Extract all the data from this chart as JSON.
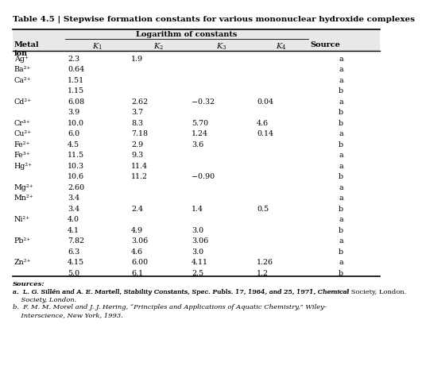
{
  "title": "Table 4.5 | Stepwise formation constants for various mononuclear hydroxide complexes",
  "col_header_top": "Logarithm of constants",
  "rows": [
    [
      "Ag⁺",
      "2.3",
      "1.9",
      "",
      "",
      "a"
    ],
    [
      "Ba²⁺",
      "0.64",
      "",
      "",
      "",
      "a"
    ],
    [
      "Ca²⁺",
      "1.51",
      "",
      "",
      "",
      "a"
    ],
    [
      "",
      "1.15",
      "",
      "",
      "",
      "b"
    ],
    [
      "Cd²⁺",
      "6.08",
      "2.62",
      "−0.32",
      "0.04",
      "a"
    ],
    [
      "",
      "3.9",
      "3.7",
      "",
      "",
      "b"
    ],
    [
      "Cr³⁺",
      "10.0",
      "8.3",
      "5.70",
      "4.6",
      "b"
    ],
    [
      "Cu²⁺",
      "6.0",
      "7.18",
      "1.24",
      "0.14",
      "a"
    ],
    [
      "Fe²⁺",
      "4.5",
      "2.9",
      "3.6",
      "",
      "b"
    ],
    [
      "Fe³⁺",
      "11.5",
      "9.3",
      "",
      "",
      "a"
    ],
    [
      "Hg²⁺",
      "10.3",
      "11.4",
      "",
      "",
      "a"
    ],
    [
      "",
      "10.6",
      "11.2",
      "−0.90",
      "",
      "b"
    ],
    [
      "Mg²⁺",
      "2.60",
      "",
      "",
      "",
      "a"
    ],
    [
      "Mn²⁺",
      "3.4",
      "",
      "",
      "",
      "a"
    ],
    [
      "",
      "3.4",
      "2.4",
      "1.4",
      "0.5",
      "b"
    ],
    [
      "Ni²⁺",
      "4.0",
      "",
      "",
      "",
      "a"
    ],
    [
      "",
      "4.1",
      "4.9",
      "3.0",
      "",
      "b"
    ],
    [
      "Pb²⁺",
      "7.82",
      "3.06",
      "3.06",
      "",
      "a"
    ],
    [
      "",
      "6.3",
      "4.6",
      "3.0",
      "",
      "b"
    ],
    [
      "Zn²⁺",
      "4.15",
      "6.00",
      "4.11",
      "1.26",
      "a"
    ],
    [
      "",
      "5.0",
      "6.1",
      "2.5",
      "1.2",
      "b"
    ]
  ],
  "footer": [
    {
      "text": "Sources:",
      "style": "italic",
      "weight": "bold"
    },
    {
      "text": "a.  L. G. Sillén and A. E. Martell, Stability Constants, ",
      "style": "normal",
      "weight": "normal",
      "cont": "Spec. Publs.",
      "cont_style": "italic",
      "rest": " 17, 1964, and 25, 1971, Chemical Society, London."
    },
    {
      "text": "b.  F. M. M. Morel and J. J. Hering, “Principles and Applications of Aquatic Chemistry,” Wiley-Interscience, New York, 1993.",
      "style": "normal",
      "weight": "normal"
    }
  ],
  "header_bg": "#b8b8b8",
  "bg_color": "#e8e8e8"
}
